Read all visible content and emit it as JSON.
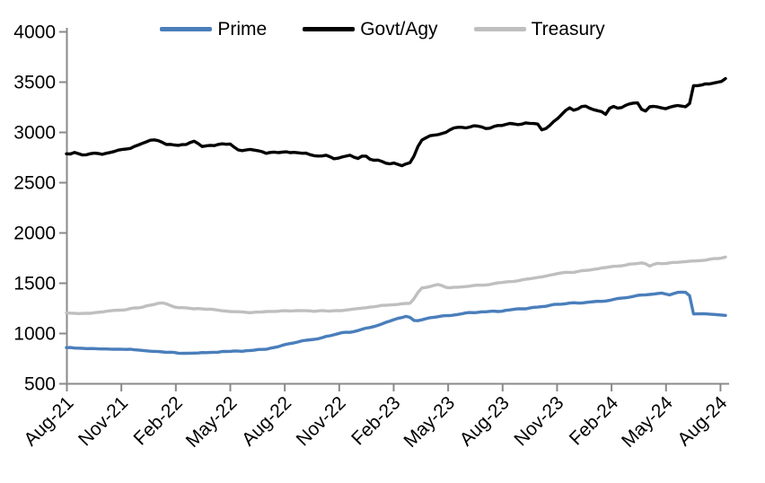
{
  "legend": {
    "items": [
      {
        "label": "Prime",
        "color": "#4a7ebb"
      },
      {
        "label": "Govt/Agy",
        "color": "#000000"
      },
      {
        "label": "Treasury",
        "color": "#bfbfbf"
      }
    ]
  },
  "chart_data": {
    "type": "line",
    "title": "",
    "xlabel": "",
    "ylabel": "",
    "legend_position": "top",
    "grid": false,
    "axis_color": "#8a8a8a",
    "y_axis": {
      "min": 500,
      "max": 4000,
      "ticks": [
        500,
        1000,
        1500,
        2000,
        2500,
        3000,
        3500,
        4000
      ]
    },
    "x_axis": {
      "tick_labels": [
        "Aug-21",
        "Nov-21",
        "Feb-22",
        "May-22",
        "Aug-22",
        "Nov-22",
        "Feb-23",
        "May-23",
        "Aug-23",
        "Nov-23",
        "Feb-24",
        "May-24",
        "Aug-24"
      ],
      "tick_months": [
        0,
        3,
        6,
        9,
        12,
        15,
        18,
        21,
        24,
        27,
        30,
        33,
        36
      ]
    },
    "x_end_month": 36.4,
    "points_format": "[months_since_Aug-2021, value]",
    "series": [
      {
        "name": "Prime",
        "color": "#4a7ebb",
        "wiggle": 6,
        "points": [
          [
            0,
            855
          ],
          [
            1,
            848
          ],
          [
            2,
            845
          ],
          [
            3,
            840
          ],
          [
            4,
            828
          ],
          [
            5,
            815
          ],
          [
            6,
            805
          ],
          [
            7,
            800
          ],
          [
            8,
            808
          ],
          [
            9,
            818
          ],
          [
            10,
            825
          ],
          [
            11,
            840
          ],
          [
            12,
            880
          ],
          [
            13,
            925
          ],
          [
            14,
            950
          ],
          [
            15,
            1000
          ],
          [
            16,
            1020
          ],
          [
            17,
            1070
          ],
          [
            18,
            1130
          ],
          [
            18.8,
            1175
          ],
          [
            19.2,
            1120
          ],
          [
            20,
            1150
          ],
          [
            21,
            1175
          ],
          [
            22,
            1200
          ],
          [
            23,
            1210
          ],
          [
            24,
            1220
          ],
          [
            25,
            1240
          ],
          [
            26,
            1260
          ],
          [
            27,
            1285
          ],
          [
            28,
            1300
          ],
          [
            29,
            1310
          ],
          [
            30,
            1330
          ],
          [
            31,
            1360
          ],
          [
            32,
            1385
          ],
          [
            32.7,
            1400
          ],
          [
            33.2,
            1380
          ],
          [
            33.7,
            1405
          ],
          [
            34.3,
            1400
          ],
          [
            34.45,
            1195
          ],
          [
            35,
            1190
          ],
          [
            35.7,
            1180
          ],
          [
            36.4,
            1175
          ]
        ]
      },
      {
        "name": "Govt/Agy",
        "color": "#000000",
        "wiggle": 18,
        "points": [
          [
            0,
            2780
          ],
          [
            1,
            2790
          ],
          [
            2,
            2780
          ],
          [
            3,
            2820
          ],
          [
            4,
            2860
          ],
          [
            5,
            2930
          ],
          [
            5.5,
            2880
          ],
          [
            6,
            2870
          ],
          [
            7,
            2900
          ],
          [
            7.5,
            2860
          ],
          [
            8,
            2880
          ],
          [
            9,
            2890
          ],
          [
            9.6,
            2800
          ],
          [
            10,
            2820
          ],
          [
            11,
            2800
          ],
          [
            12,
            2810
          ],
          [
            13,
            2790
          ],
          [
            14,
            2770
          ],
          [
            15,
            2740
          ],
          [
            15.5,
            2765
          ],
          [
            16,
            2740
          ],
          [
            16.5,
            2760
          ],
          [
            17,
            2710
          ],
          [
            18,
            2690
          ],
          [
            18.6,
            2660
          ],
          [
            19,
            2700
          ],
          [
            19.5,
            2900
          ],
          [
            20,
            2950
          ],
          [
            20.5,
            2980
          ],
          [
            21,
            3020
          ],
          [
            21.5,
            3050
          ],
          [
            22,
            3040
          ],
          [
            22.5,
            3060
          ],
          [
            23,
            3030
          ],
          [
            23.5,
            3060
          ],
          [
            24,
            3070
          ],
          [
            25,
            3080
          ],
          [
            25.9,
            3090
          ],
          [
            26.2,
            3010
          ],
          [
            27,
            3120
          ],
          [
            27.7,
            3230
          ],
          [
            28,
            3200
          ],
          [
            28.5,
            3260
          ],
          [
            29,
            3230
          ],
          [
            29.7,
            3180
          ],
          [
            30,
            3260
          ],
          [
            30.5,
            3230
          ],
          [
            31,
            3270
          ],
          [
            31.4,
            3300
          ],
          [
            31.8,
            3170
          ],
          [
            32.2,
            3260
          ],
          [
            33,
            3230
          ],
          [
            33.5,
            3260
          ],
          [
            34,
            3250
          ],
          [
            34.3,
            3270
          ],
          [
            34.5,
            3460
          ],
          [
            35,
            3470
          ],
          [
            35.7,
            3480
          ],
          [
            36.1,
            3500
          ],
          [
            36.4,
            3530
          ]
        ]
      },
      {
        "name": "Treasury",
        "color": "#bfbfbf",
        "wiggle": 6,
        "points": [
          [
            0,
            1200
          ],
          [
            1,
            1195
          ],
          [
            2,
            1210
          ],
          [
            3,
            1230
          ],
          [
            4,
            1255
          ],
          [
            5,
            1290
          ],
          [
            5.4,
            1300
          ],
          [
            6,
            1260
          ],
          [
            7,
            1245
          ],
          [
            8,
            1235
          ],
          [
            9,
            1215
          ],
          [
            10,
            1205
          ],
          [
            11,
            1215
          ],
          [
            12,
            1220
          ],
          [
            13,
            1225
          ],
          [
            14,
            1220
          ],
          [
            15,
            1225
          ],
          [
            16,
            1245
          ],
          [
            17,
            1265
          ],
          [
            18,
            1285
          ],
          [
            19,
            1300
          ],
          [
            19.5,
            1450
          ],
          [
            20,
            1465
          ],
          [
            20.5,
            1480
          ],
          [
            21,
            1450
          ],
          [
            22,
            1465
          ],
          [
            23,
            1480
          ],
          [
            24,
            1505
          ],
          [
            25,
            1525
          ],
          [
            26,
            1555
          ],
          [
            27,
            1590
          ],
          [
            28,
            1610
          ],
          [
            29,
            1635
          ],
          [
            30,
            1660
          ],
          [
            31,
            1680
          ],
          [
            31.8,
            1705
          ],
          [
            32.1,
            1660
          ],
          [
            32.5,
            1690
          ],
          [
            33,
            1695
          ],
          [
            34,
            1705
          ],
          [
            35,
            1725
          ],
          [
            36,
            1745
          ],
          [
            36.4,
            1760
          ]
        ]
      }
    ]
  }
}
